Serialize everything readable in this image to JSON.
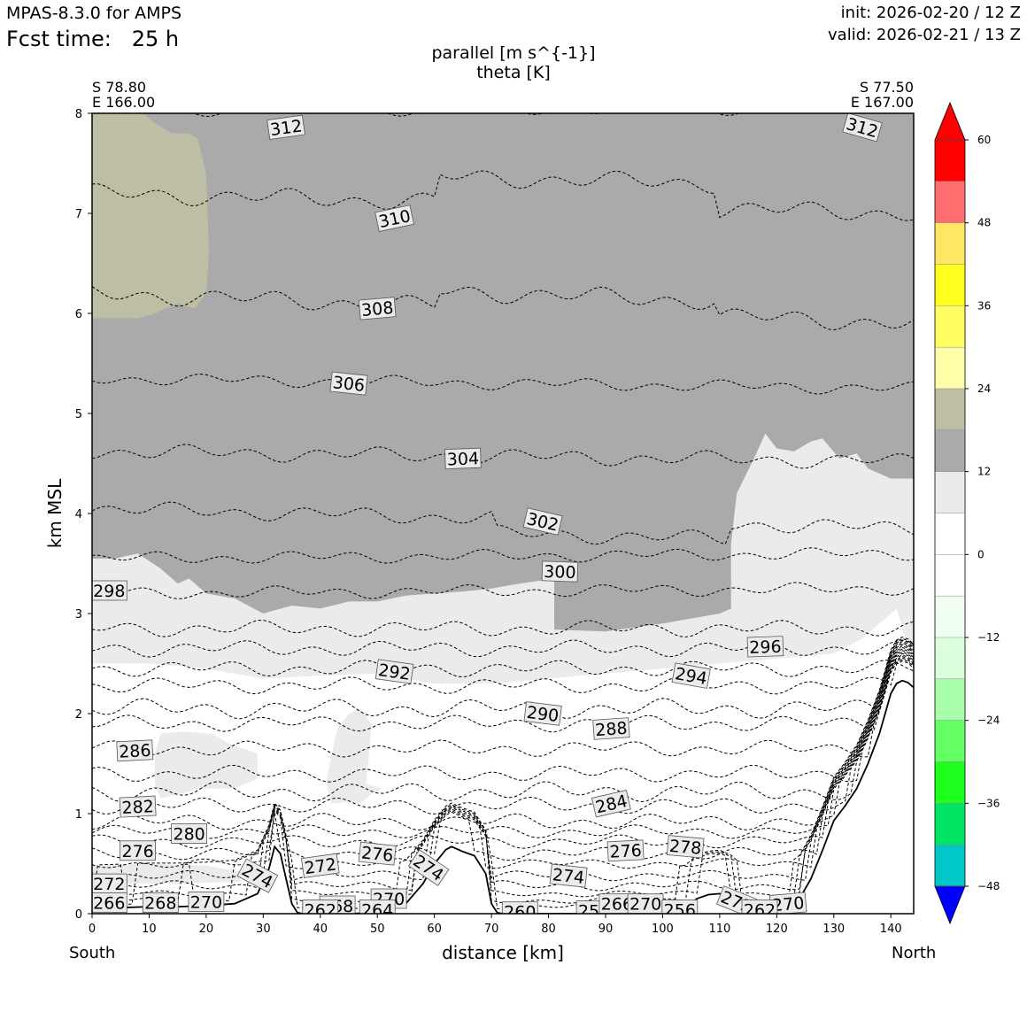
{
  "header": {
    "model": "MPAS-8.3.0 for AMPS",
    "fcst_label": "Fcst time:",
    "fcst_value": "25 h",
    "init": "init: 2026-02-20 / 12 Z",
    "valid": "valid: 2026-02-21 / 13 Z"
  },
  "chart_data": {
    "type": "contour",
    "title": "parallel [m s^{-1}]",
    "subtitle": "theta [K]",
    "xlabel": "distance [km]",
    "ylabel": "km MSL",
    "xlim": [
      0,
      144
    ],
    "ylim": [
      0,
      8
    ],
    "xticks": [
      0,
      10,
      20,
      30,
      40,
      50,
      60,
      70,
      80,
      90,
      100,
      110,
      120,
      130,
      140
    ],
    "yticks": [
      0,
      1,
      2,
      3,
      4,
      5,
      6,
      7,
      8
    ],
    "left_end": {
      "lat": "S 78.80",
      "lon": "E 166.00",
      "label": "South"
    },
    "right_end": {
      "lat": "S 77.50",
      "lon": "E 167.00",
      "label": "North"
    },
    "colorbar": {
      "levels": [
        -54,
        -48,
        -42,
        -36,
        -30,
        -24,
        -18,
        -12,
        -6,
        0,
        6,
        12,
        18,
        24,
        30,
        36,
        42,
        48,
        54,
        60
      ],
      "colors": [
        "#0000ff",
        "#00c8c8",
        "#00e664",
        "#1eff1e",
        "#64ff64",
        "#aaffaa",
        "#dcffdc",
        "#f0fff0",
        "#ffffff",
        "#ffffff",
        "#ebebeb",
        "#aaaaaa",
        "#bebea5",
        "#ffffaa",
        "#ffff64",
        "#ffff1e",
        "#ffe664",
        "#ff6e6e",
        "#ff0000"
      ],
      "under_color": "#0000ff",
      "over_color": "#ff0000",
      "tick_labels": [
        "60",
        "48",
        "36",
        "24",
        "12",
        "0",
        "−12",
        "−24",
        "−36",
        "−48"
      ],
      "tick_values": [
        60,
        48,
        36,
        24,
        12,
        0,
        -12,
        -24,
        -36,
        -48
      ]
    },
    "theta_contours": [
      {
        "label": "312",
        "x": 34,
        "z": 7.86,
        "angle": -8
      },
      {
        "label": "312",
        "x": 135,
        "z": 7.86,
        "angle": 16
      },
      {
        "label": "310",
        "x": 53,
        "z": 6.95,
        "angle": -12
      },
      {
        "label": "308",
        "x": 50,
        "z": 6.05,
        "angle": -5
      },
      {
        "label": "306",
        "x": 45,
        "z": 5.3,
        "angle": 6
      },
      {
        "label": "304",
        "x": 65,
        "z": 4.55,
        "angle": -2
      },
      {
        "label": "302",
        "x": 79,
        "z": 3.92,
        "angle": 13
      },
      {
        "label": "300",
        "x": 82,
        "z": 3.42,
        "angle": 2
      },
      {
        "label": "298",
        "x": 3,
        "z": 3.23,
        "angle": 0
      },
      {
        "label": "296",
        "x": 118,
        "z": 2.67,
        "angle": -2
      },
      {
        "label": "294",
        "x": 105,
        "z": 2.38,
        "angle": 10
      },
      {
        "label": "292",
        "x": 53,
        "z": 2.42,
        "angle": 8
      },
      {
        "label": "290",
        "x": 79,
        "z": 2.0,
        "angle": 7
      },
      {
        "label": "288",
        "x": 91,
        "z": 1.85,
        "angle": -4
      },
      {
        "label": "286",
        "x": 7.5,
        "z": 1.63,
        "angle": -3
      },
      {
        "label": "284",
        "x": 91,
        "z": 1.1,
        "angle": -13
      },
      {
        "label": "282",
        "x": 8,
        "z": 1.07,
        "angle": -3
      },
      {
        "label": "280",
        "x": 17,
        "z": 0.8,
        "angle": 0
      },
      {
        "label": "278",
        "x": 104,
        "z": 0.67,
        "angle": 5
      },
      {
        "label": "276",
        "x": 8,
        "z": 0.63,
        "angle": 0
      },
      {
        "label": "276",
        "x": 50,
        "z": 0.6,
        "angle": 6
      },
      {
        "label": "276",
        "x": 93.5,
        "z": 0.63,
        "angle": -3
      },
      {
        "label": "274",
        "x": 29,
        "z": 0.38,
        "angle": 28
      },
      {
        "label": "274",
        "x": 59,
        "z": 0.46,
        "angle": 34
      },
      {
        "label": "274",
        "x": 83.5,
        "z": 0.38,
        "angle": 6
      },
      {
        "label": "272",
        "x": 40,
        "z": 0.48,
        "angle": -8
      },
      {
        "label": "272",
        "x": 3,
        "z": 0.3,
        "angle": 0
      },
      {
        "label": "272",
        "x": 113,
        "z": 0.12,
        "angle": 22
      },
      {
        "label": "270",
        "x": 20,
        "z": 0.12,
        "angle": 0
      },
      {
        "label": "270",
        "x": 52,
        "z": 0.15,
        "angle": 0
      },
      {
        "label": "270",
        "x": 122,
        "z": 0.1,
        "angle": -5
      },
      {
        "label": "268",
        "x": 12,
        "z": 0.11,
        "angle": 0
      },
      {
        "label": "268",
        "x": 43,
        "z": 0.08,
        "angle": 0
      },
      {
        "label": "266",
        "x": 3,
        "z": 0.11,
        "angle": 0
      },
      {
        "label": "264",
        "x": 50,
        "z": 0.04,
        "angle": 0
      },
      {
        "label": "262",
        "x": 40,
        "z": 0.04,
        "angle": 0
      },
      {
        "label": "262",
        "x": 117,
        "z": 0.04,
        "angle": 0
      },
      {
        "label": "260",
        "x": 75,
        "z": 0.02,
        "angle": 0
      },
      {
        "label": "258",
        "x": 88,
        "z": 0.03,
        "angle": 0
      },
      {
        "label": "266",
        "x": 92,
        "z": 0.1,
        "angle": 0
      },
      {
        "label": "270",
        "x": 97,
        "z": 0.1,
        "angle": 0
      },
      {
        "label": "256",
        "x": 103,
        "z": 0.04,
        "angle": 0
      }
    ],
    "terrain": {
      "x": [
        0,
        5,
        10,
        15,
        20,
        25,
        29,
        31,
        32,
        33,
        34,
        35,
        36,
        37,
        40,
        45,
        50,
        55,
        58,
        60,
        62,
        63,
        65,
        67,
        69,
        70,
        71,
        72,
        75,
        80,
        85,
        90,
        95,
        100,
        104,
        106,
        107,
        108,
        110,
        112,
        114,
        116,
        118,
        120,
        122,
        124,
        126,
        128,
        130,
        132,
        134,
        136,
        138,
        139,
        140,
        141,
        142,
        143,
        144
      ],
      "z": [
        0.05,
        0.06,
        0.07,
        0.07,
        0.08,
        0.1,
        0.2,
        0.45,
        0.67,
        0.6,
        0.35,
        0.1,
        0.01,
        0.0,
        0.0,
        0.0,
        0.01,
        0.1,
        0.3,
        0.5,
        0.64,
        0.67,
        0.62,
        0.58,
        0.4,
        0.1,
        0.01,
        0.0,
        0.0,
        0.0,
        0.0,
        0.0,
        0.0,
        0.01,
        0.05,
        0.15,
        0.17,
        0.19,
        0.2,
        0.15,
        0.05,
        0.02,
        0.01,
        0.02,
        0.06,
        0.15,
        0.35,
        0.63,
        0.93,
        1.08,
        1.25,
        1.5,
        1.8,
        2.0,
        2.2,
        2.3,
        2.33,
        2.31,
        2.26
      ]
    }
  }
}
